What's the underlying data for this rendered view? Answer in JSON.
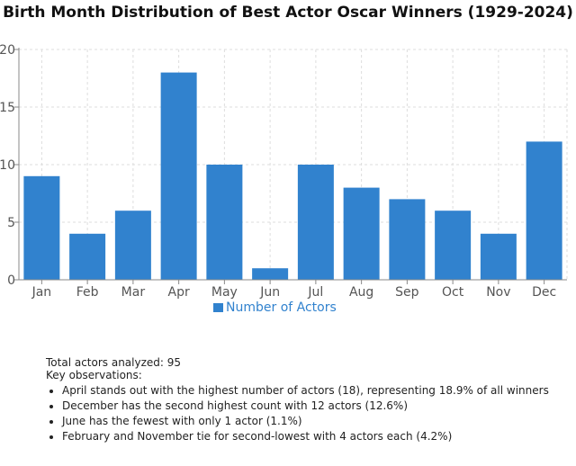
{
  "chart_data": {
    "type": "bar",
    "title": "Birth Month Distribution of Best Actor Oscar Winners (1929-2024)",
    "categories": [
      "Jan",
      "Feb",
      "Mar",
      "Apr",
      "May",
      "Jun",
      "Jul",
      "Aug",
      "Sep",
      "Oct",
      "Nov",
      "Dec"
    ],
    "values": [
      9,
      4,
      6,
      18,
      10,
      1,
      10,
      8,
      7,
      6,
      4,
      12
    ],
    "series_name": "Number of Actors",
    "ylim": [
      0,
      20
    ],
    "yticks": [
      0,
      5,
      10,
      15,
      20
    ],
    "grid": true,
    "legend": "bottom-center",
    "color": "#3182ce"
  },
  "notes": {
    "total": "Total actors analyzed: 95",
    "heading": "Key observations:",
    "items": [
      "April stands out with the highest number of actors (18), representing 18.9% of all winners",
      "December has the second highest count with 12 actors (12.6%)",
      "June has the fewest with only 1 actor (1.1%)",
      "February and November tie for second-lowest with 4 actors each (4.2%)"
    ]
  }
}
